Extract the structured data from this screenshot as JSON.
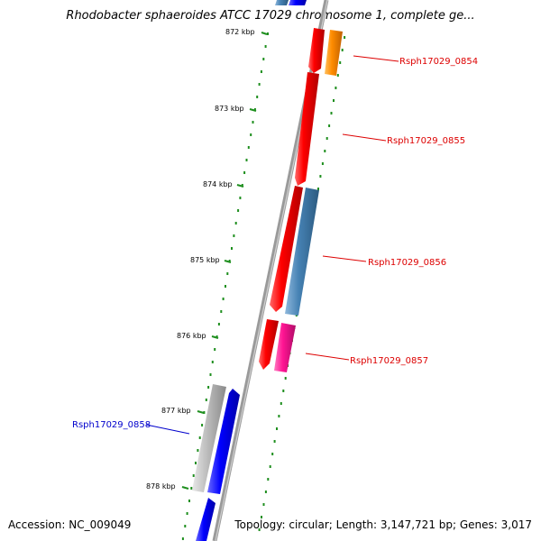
{
  "title": "Rhodobacter sphaeroides ATCC 17029 chromosome 1, complete ge...",
  "footer": {
    "accession": "Accession: NC_009049",
    "stats": "Topology: circular; Length: 3,147,721 bp; Genes: 3,017"
  },
  "ticks": [
    "872 kbp",
    "873 kbp",
    "874 kbp",
    "875 kbp",
    "876 kbp",
    "877 kbp",
    "878 kbp"
  ],
  "genes": [
    {
      "id": "Rsph17029_0854",
      "label": "Rsph17029_0854",
      "color": "#dd0000"
    },
    {
      "id": "Rsph17029_0855",
      "label": "Rsph17029_0855",
      "color": "#dd0000"
    },
    {
      "id": "Rsph17029_0856",
      "label": "Rsph17029_0856",
      "color": "#dd0000"
    },
    {
      "id": "Rsph17029_0857",
      "label": "Rsph17029_0857",
      "color": "#dd0000"
    },
    {
      "id": "Rsph17029_0858",
      "label": "Rsph17029_0858",
      "color": "#0000cc"
    }
  ],
  "colors": {
    "red": "#ff0000",
    "orange": "#ff8c00",
    "steelblue": "#4682b4",
    "pink": "#ff1493",
    "blue": "#0000ff",
    "gray": "#b8b8b8",
    "dots": "#1f8f1f",
    "backbone": "#808080"
  }
}
